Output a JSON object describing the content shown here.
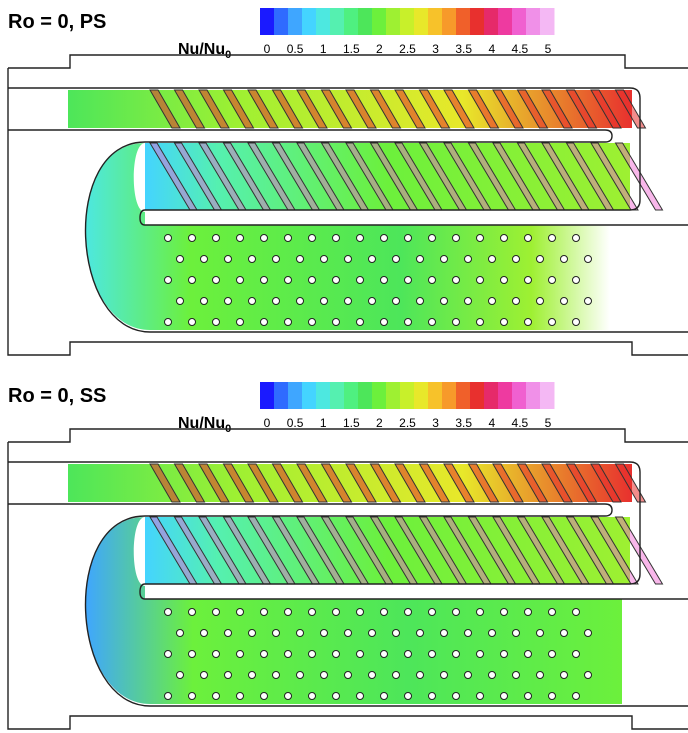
{
  "panels": [
    {
      "title": "Ro = 0, PS",
      "colorbar": {
        "label": "Nu/Nu",
        "label_subscript": "0",
        "ticks": [
          0,
          0.5,
          1,
          1.5,
          2,
          2.5,
          3,
          3.5,
          4,
          4.5,
          5
        ]
      }
    },
    {
      "title": "Ro = 0, SS",
      "colorbar": {
        "label": "Nu/Nu",
        "label_subscript": "0",
        "ticks": [
          0,
          0.5,
          1,
          1.5,
          2,
          2.5,
          3,
          3.5,
          4,
          4.5,
          5
        ]
      }
    }
  ],
  "colorbar_colors": [
    "#1a1aff",
    "#2f6bff",
    "#3fa6ff",
    "#44d4ff",
    "#4de8e0",
    "#55f0b0",
    "#4ff080",
    "#4de65a",
    "#6cf03c",
    "#9ef032",
    "#c8f02a",
    "#e8e82a",
    "#f7c22a",
    "#f79a2a",
    "#f0602a",
    "#e8302e",
    "#e62a6a",
    "#ee3aa0",
    "#f060d0",
    "#f090e8",
    "#f4b8f4"
  ]
}
